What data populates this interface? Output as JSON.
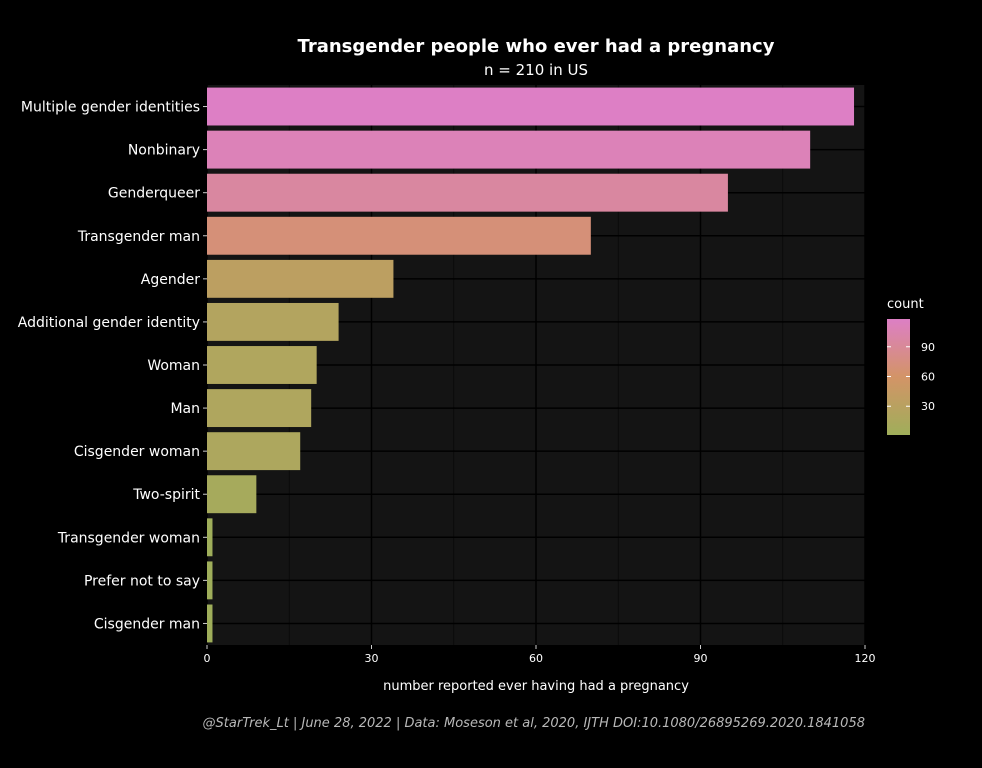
{
  "chart_data": {
    "type": "bar",
    "orientation": "horizontal",
    "title": "Transgender people who ever had a pregnancy",
    "subtitle": "n = 210 in US",
    "xlabel": "number reported ever having had a pregnancy",
    "ylabel": "",
    "caption": "@StarTrek_Lt | June 28, 2022 | Data: Moseson et al, 2020, IJTH DOI:10.1080/26895269.2020.1841058",
    "categories": [
      "Multiple gender identities",
      "Nonbinary",
      "Genderqueer",
      "Transgender man",
      "Agender",
      "Additional gender identity",
      "Woman",
      "Man",
      "Cisgender woman",
      "Two-spirit",
      "Transgender woman",
      "Prefer not to say",
      "Cisgender man"
    ],
    "values": [
      118,
      110,
      95,
      70,
      34,
      24,
      20,
      19,
      17,
      9,
      1,
      1,
      1
    ],
    "xlim": [
      0,
      120
    ],
    "xticks": [
      0,
      30,
      60,
      90,
      120
    ],
    "grid": true,
    "legend": {
      "title": "count",
      "position": "right",
      "ticks": [
        30,
        60,
        90
      ],
      "range": [
        1,
        118
      ],
      "color_low": "#9fae5a",
      "color_mid": "#d39467",
      "color_high": "#dd7fc5"
    },
    "colors": {
      "background": "#000000",
      "panel": "#141414",
      "grid_major": "#000000",
      "grid_minor": "#0a0a0a"
    }
  }
}
